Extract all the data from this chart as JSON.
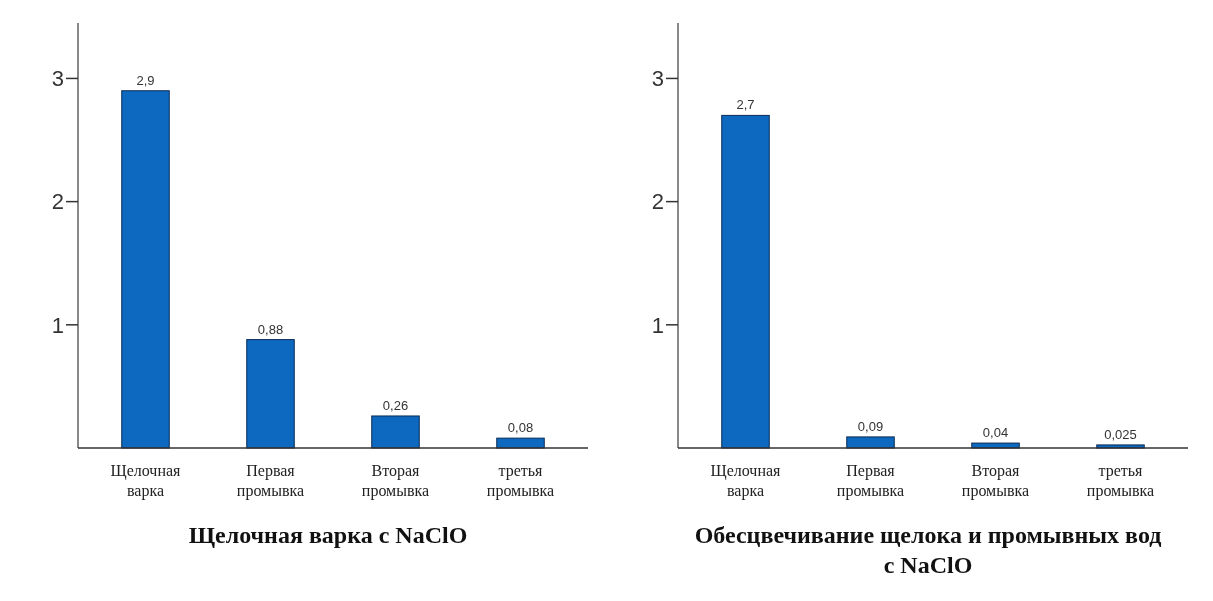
{
  "chart_data": [
    {
      "type": "bar",
      "title": "Щелочная варка с NaClO",
      "categories": [
        "Щелочная варка",
        "Первая промывка",
        "Вторая промывка",
        "третья промывка"
      ],
      "values": [
        2.9,
        0.88,
        0.26,
        0.08
      ],
      "value_labels": [
        "2,9",
        "0,88",
        "0,26",
        "0,08"
      ],
      "color": "#0d68c0",
      "ylim": [
        0,
        3.45
      ],
      "yticks": [
        1,
        2,
        3
      ],
      "grid": false
    },
    {
      "type": "bar",
      "title": "Обесцвечивание щелока и промывных вод с NaClO",
      "categories": [
        "Щелочная варка",
        "Первая промывка",
        "Вторая промывка",
        "третья промывка"
      ],
      "values": [
        2.7,
        0.09,
        0.04,
        0.025
      ],
      "value_labels": [
        "2,7",
        "0,09",
        "0,04",
        "0,025"
      ],
      "color": "#0d68c0",
      "ylim": [
        0,
        3.45
      ],
      "yticks": [
        1,
        2,
        3
      ],
      "grid": false
    }
  ]
}
